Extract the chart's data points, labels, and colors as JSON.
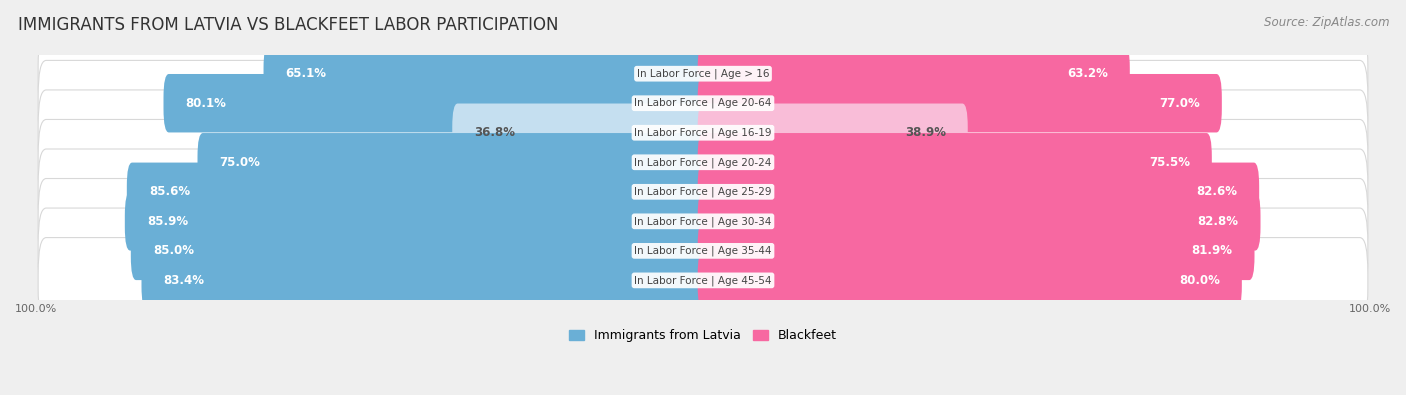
{
  "title": "IMMIGRANTS FROM LATVIA VS BLACKFEET LABOR PARTICIPATION",
  "source": "Source: ZipAtlas.com",
  "categories": [
    "In Labor Force | Age > 16",
    "In Labor Force | Age 20-64",
    "In Labor Force | Age 16-19",
    "In Labor Force | Age 20-24",
    "In Labor Force | Age 25-29",
    "In Labor Force | Age 30-34",
    "In Labor Force | Age 35-44",
    "In Labor Force | Age 45-54"
  ],
  "latvia_values": [
    65.1,
    80.1,
    36.8,
    75.0,
    85.6,
    85.9,
    85.0,
    83.4
  ],
  "blackfeet_values": [
    63.2,
    77.0,
    38.9,
    75.5,
    82.6,
    82.8,
    81.9,
    80.0
  ],
  "latvia_color": "#6aafd6",
  "blackfeet_color": "#f768a1",
  "latvia_color_light": "#c5dff0",
  "blackfeet_color_light": "#f9bdd8",
  "label_color_white": "#ffffff",
  "label_color_dark": "#555555",
  "bg_color": "#efefef",
  "row_bg_color": "#ffffff",
  "row_border_color": "#d8d8d8",
  "title_fontsize": 12,
  "source_fontsize": 8.5,
  "bar_label_fontsize": 8.5,
  "category_fontsize": 7.5,
  "legend_fontsize": 9,
  "axis_label_fontsize": 8,
  "max_value": 100.0
}
